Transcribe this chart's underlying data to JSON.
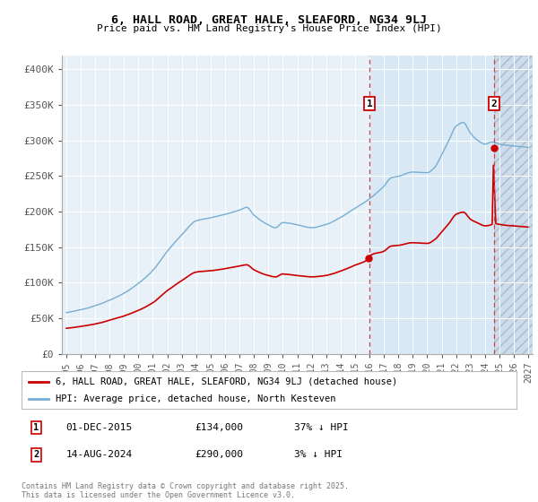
{
  "title": "6, HALL ROAD, GREAT HALE, SLEAFORD, NG34 9LJ",
  "subtitle": "Price paid vs. HM Land Registry's House Price Index (HPI)",
  "hpi_label": "HPI: Average price, detached house, North Kesteven",
  "property_label": "6, HALL ROAD, GREAT HALE, SLEAFORD, NG34 9LJ (detached house)",
  "footnote": "Contains HM Land Registry data © Crown copyright and database right 2025.\nThis data is licensed under the Open Government Licence v3.0.",
  "annotation1": {
    "label": "1",
    "date": "01-DEC-2015",
    "price": "£134,000",
    "pct": "37% ↓ HPI"
  },
  "annotation2": {
    "label": "2",
    "date": "14-AUG-2024",
    "price": "£290,000",
    "pct": "3% ↓ HPI"
  },
  "hpi_color": "#74afd3",
  "property_color": "#cc0000",
  "background_plot": "#e8f0f8",
  "background_shaded": "#d8e8f4",
  "ylim_max": 420000,
  "yticks": [
    0,
    50000,
    100000,
    150000,
    200000,
    250000,
    300000,
    350000,
    400000
  ],
  "ytick_labels": [
    "£0",
    "£50K",
    "£100K",
    "£150K",
    "£200K",
    "£250K",
    "£300K",
    "£350K",
    "£400K"
  ],
  "xlim_start": 1994.7,
  "xlim_end": 2027.3,
  "marker1_year": 2016.0,
  "marker2_year": 2024.62,
  "sale1_x": 2015.92,
  "sale1_y": 134000,
  "sale2_x": 2024.62,
  "sale2_y": 290000
}
